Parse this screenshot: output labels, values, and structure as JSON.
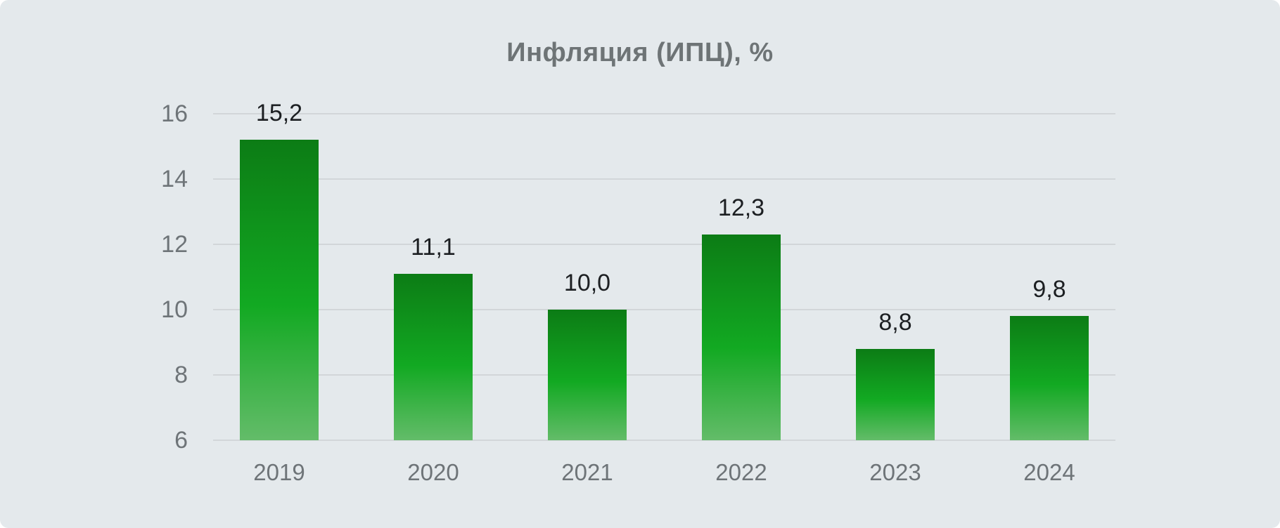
{
  "chart_data": {
    "type": "bar",
    "title": "Инфляция (ИПЦ), %",
    "categories": [
      "2019",
      "2020",
      "2021",
      "2022",
      "2023",
      "2024"
    ],
    "values": [
      15.2,
      11.1,
      10.0,
      12.3,
      8.8,
      9.8
    ],
    "value_labels": [
      "15,2",
      "11,1",
      "10,0",
      "12,3",
      "8,8",
      "9,8"
    ],
    "xlabel": "",
    "ylabel": "",
    "ylim": [
      6,
      16
    ],
    "y_ticks": [
      6,
      8,
      10,
      12,
      14,
      16
    ],
    "grid": true,
    "legend": false,
    "colors": {
      "bar_gradient_top": "#0c7c15",
      "bar_gradient_mid": "#12a922",
      "bar_gradient_bottom": "#63bc69",
      "title": "#6e7476",
      "axis_label": "#6e7478",
      "value_label": "#1c1f22",
      "gridline": "#d2d6d9",
      "card_background": "#e4e9ec",
      "page_background": "#ffffff"
    }
  }
}
